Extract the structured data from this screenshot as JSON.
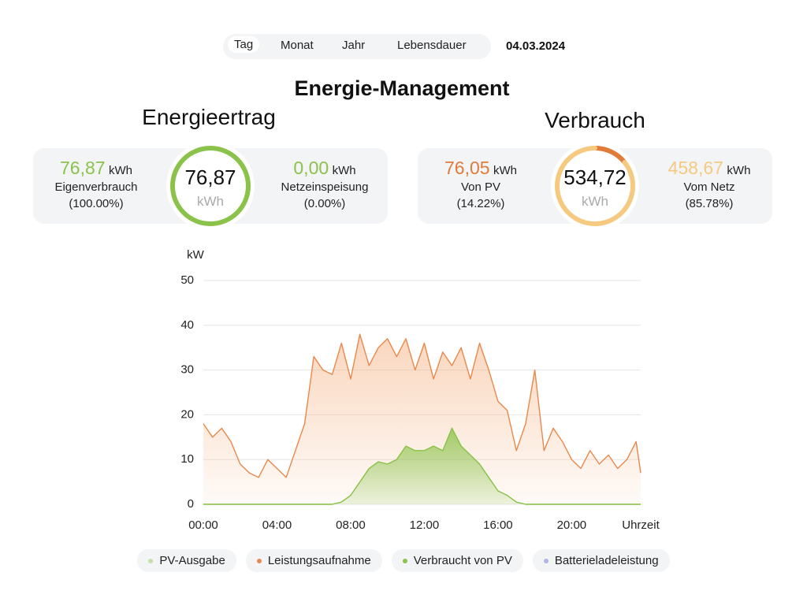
{
  "tabs": [
    "Tag",
    "Monat",
    "Jahr",
    "Lebensdauer"
  ],
  "date": "04.03.2024",
  "title": "Energie-Management",
  "panels": [
    {
      "title": "Energieertrag",
      "total": "76,87",
      "unit": "kWh",
      "left": {
        "value": "76,87",
        "unit": "kWh",
        "label": "Eigenverbrauch",
        "percent": "(100.00%)",
        "share": 100,
        "color": "#8bc34a"
      },
      "right": {
        "value": "0,00",
        "unit": "kWh",
        "label": "Netzeinspeisung",
        "percent": "(0.00%)",
        "share": 0,
        "color": "#8bc34a"
      }
    },
    {
      "title": "Verbrauch",
      "total": "534,72",
      "unit": "kWh",
      "left": {
        "value": "76,05",
        "unit": "kWh",
        "label": "Von PV",
        "percent": "(14.22%)",
        "share": 14.22,
        "color": "#e07b39"
      },
      "right": {
        "value": "458,67",
        "unit": "kWh",
        "label": "Vom Netz",
        "percent": "(85.78%)",
        "share": 85.78,
        "color": "#f5c97f"
      }
    }
  ],
  "chart_data": {
    "type": "line",
    "y_label": "kW",
    "x_label": "Uhrzeit",
    "x": [
      0,
      0.5,
      1,
      1.5,
      2,
      2.5,
      3,
      3.5,
      4,
      4.5,
      5,
      5.5,
      6,
      6.5,
      7,
      7.5,
      8,
      8.5,
      9,
      9.5,
      10,
      10.5,
      11,
      11.5,
      12,
      12.5,
      13,
      13.5,
      14,
      14.5,
      15,
      15.5,
      16,
      16.5,
      17,
      17.5,
      18,
      18.5,
      19,
      19.5,
      20,
      20.5,
      21,
      21.5,
      22,
      22.5,
      23,
      23.5,
      23.75
    ],
    "xlim": [
      0,
      23.75
    ],
    "xticks": [
      {
        "value": 0,
        "label": "00:00"
      },
      {
        "value": 4,
        "label": "04:00"
      },
      {
        "value": 8,
        "label": "08:00"
      },
      {
        "value": 12,
        "label": "12:00"
      },
      {
        "value": 16,
        "label": "16:00"
      },
      {
        "value": 20,
        "label": "20:00"
      }
    ],
    "ylim": [
      0,
      50
    ],
    "yticks": [
      0,
      10,
      20,
      30,
      40,
      50
    ],
    "grid": true,
    "series": [
      {
        "name": "PV-Ausgabe",
        "color": "#c5e1a5",
        "fill": false,
        "values": [
          0,
          0,
          0,
          0,
          0,
          0,
          0,
          0,
          0,
          0,
          0,
          0,
          0,
          0,
          0,
          0.5,
          2,
          5,
          8,
          9.5,
          9,
          10,
          13,
          12,
          12,
          13,
          12,
          17,
          13,
          11,
          9,
          6,
          3,
          2,
          0.5,
          0,
          0,
          0,
          0,
          0,
          0,
          0,
          0,
          0,
          0,
          0,
          0,
          0,
          0
        ]
      },
      {
        "name": "Leistungsaufnahme",
        "color": "#e8884a",
        "fill": true,
        "values": [
          18,
          15,
          17,
          14,
          9,
          7,
          6,
          10,
          8,
          6,
          12,
          18,
          33,
          30,
          29,
          36,
          28,
          38,
          31,
          35,
          37,
          33,
          37,
          30,
          36,
          28,
          34,
          31,
          35,
          28,
          36,
          30,
          23,
          21,
          12,
          18,
          30,
          12,
          17,
          14,
          10,
          8,
          12,
          9,
          11,
          8,
          10,
          14,
          7
        ]
      },
      {
        "name": "Verbraucht von PV",
        "color": "#8bc34a",
        "fill": true,
        "values": [
          0,
          0,
          0,
          0,
          0,
          0,
          0,
          0,
          0,
          0,
          0,
          0,
          0,
          0,
          0,
          0.5,
          2,
          5,
          8,
          9.5,
          9,
          10,
          13,
          12,
          12,
          13,
          12,
          17,
          13,
          11,
          9,
          6,
          3,
          2,
          0.5,
          0,
          0,
          0,
          0,
          0,
          0,
          0,
          0,
          0,
          0,
          0,
          0,
          0,
          0
        ]
      },
      {
        "name": "Batterieladeleistung",
        "color": "#b0b6e0",
        "fill": false,
        "values": [
          null,
          null,
          null,
          null,
          null,
          null,
          null,
          null,
          null,
          null,
          null,
          null,
          null,
          null,
          null,
          null,
          null,
          null,
          null,
          null,
          null,
          null,
          null,
          null,
          null,
          null,
          null,
          null,
          null,
          null,
          null,
          null,
          null,
          null,
          null,
          null,
          null,
          null,
          null,
          null,
          null,
          null,
          null,
          null,
          null,
          null,
          null,
          null,
          null
        ]
      }
    ]
  }
}
